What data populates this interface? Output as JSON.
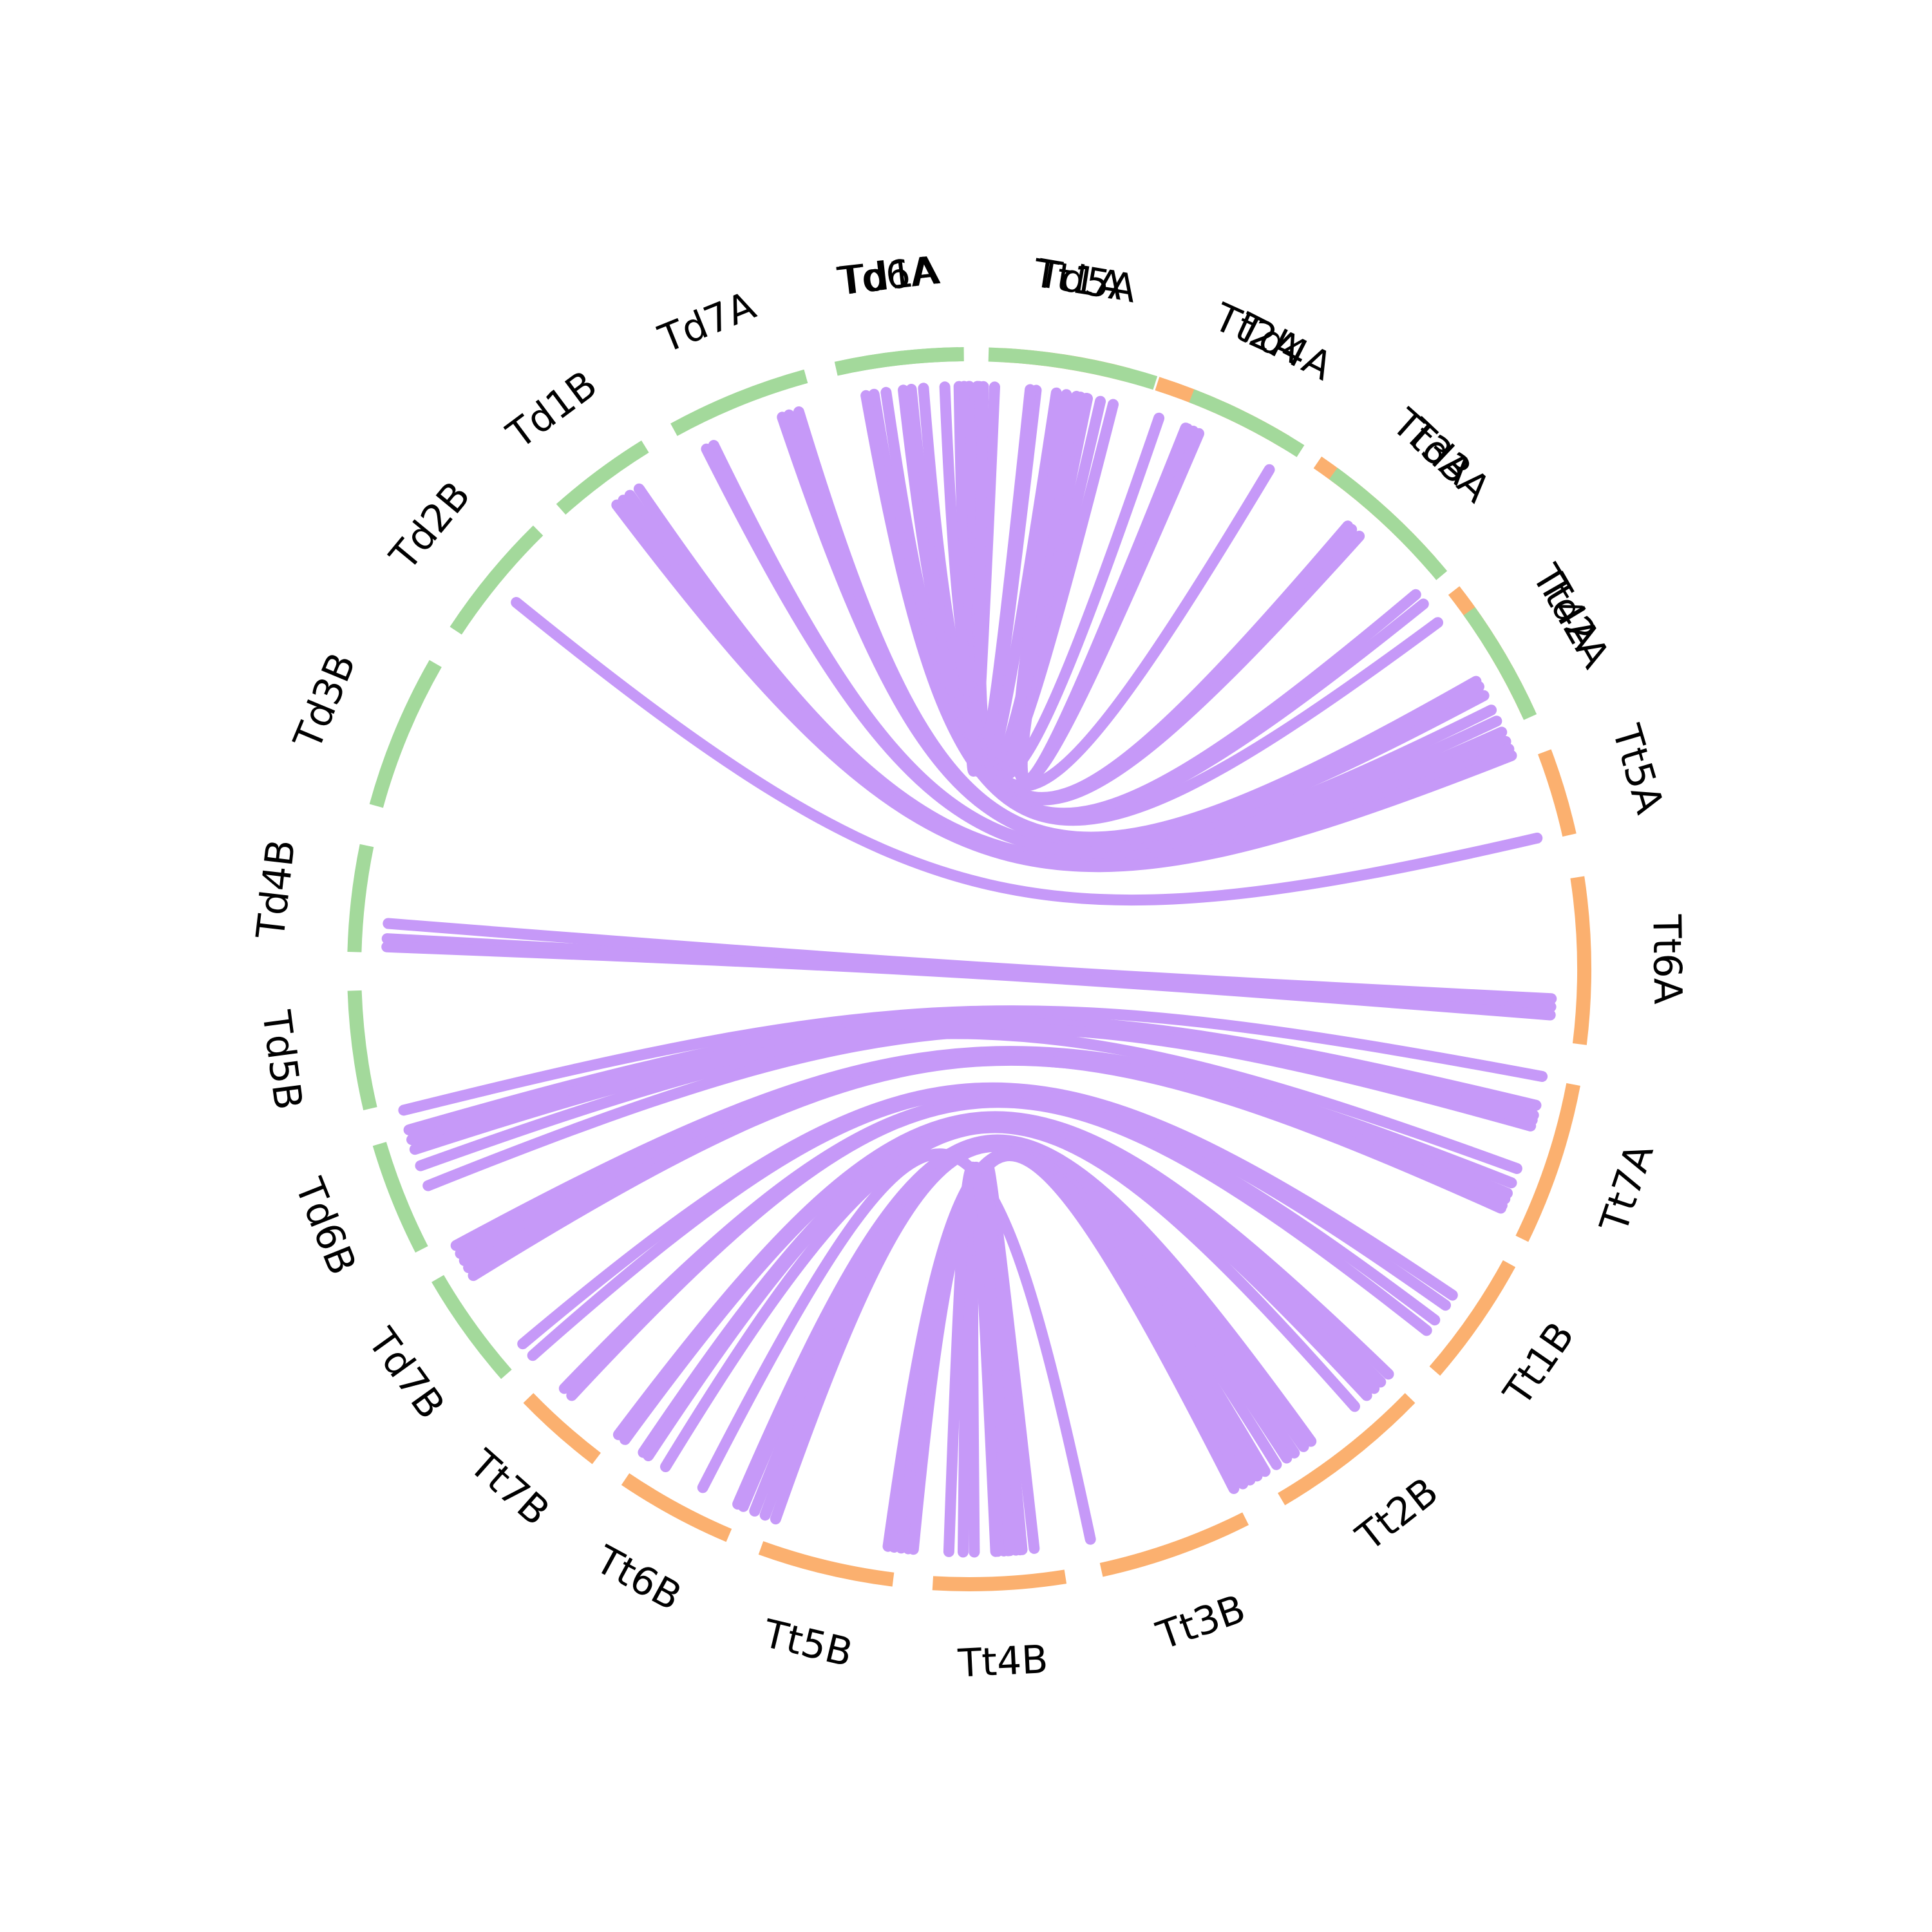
{
  "colors": {
    "td": "#a3d99b",
    "tt": "#fbb06f",
    "link": "#c699f8",
    "text": "#000000",
    "background": "#ffffff"
  },
  "segments": [
    {
      "id": "Td1A",
      "label": "Td1A",
      "group": "td",
      "start": 269.5,
      "end": 281.5
    },
    {
      "id": "Tt1A",
      "label": "Tt1A",
      "group": "tt",
      "start": 273.0,
      "end": 285.0
    },
    {
      "id": "Tt2A",
      "label": "Tt2A",
      "group": "tt",
      "start": 287.8,
      "end": 301.0
    },
    {
      "id": "Tt3A",
      "label": "Tt3A",
      "group": "tt",
      "start": 304.5,
      "end": 318.6
    },
    {
      "id": "Tt4A",
      "label": "Tt4A",
      "group": "tt",
      "start": 322.0,
      "end": 335.5
    },
    {
      "id": "Tt5A",
      "label": "Tt5A",
      "group": "tt",
      "start": 339.3,
      "end": 347.4
    },
    {
      "id": "Tt6A",
      "label": "Tt6A",
      "group": "tt",
      "start": 351.4,
      "end": 367.0
    },
    {
      "id": "Tt7A",
      "label": "Tt7A",
      "group": "tt",
      "start": 370.8,
      "end": 386.0
    },
    {
      "id": "Tt1B",
      "label": "Tt1B",
      "group": "tt",
      "start": 388.6,
      "end": 400.8
    },
    {
      "id": "Tt2B",
      "label": "Tt2B",
      "group": "tt",
      "start": 404.2,
      "end": 419.5
    },
    {
      "id": "Tt3B",
      "label": "Tt3B",
      "group": "tt",
      "start": 423.3,
      "end": 437.6
    },
    {
      "id": "Tt4B",
      "label": "Tt4B",
      "group": "tt",
      "start": 441.0,
      "end": 453.4
    },
    {
      "id": "Tt5B",
      "label": "Tt5B",
      "group": "tt",
      "start": 457.1,
      "end": 469.8
    },
    {
      "id": "Tt6B",
      "label": "Tt6B",
      "group": "tt",
      "start": 473.0,
      "end": 484.0
    },
    {
      "id": "Tt7B",
      "label": "Tt7B",
      "group": "tt",
      "start": 487.3,
      "end": 495.8
    },
    {
      "id": "Td7B",
      "label": "Td7B",
      "group": "td",
      "start": 498.8,
      "end": 509.8
    },
    {
      "id": "Td6B",
      "label": "Td6B",
      "group": "td",
      "start": 512.9,
      "end": 523.5
    },
    {
      "id": "Td5B",
      "label": "Td5B",
      "group": "td",
      "start": 526.9,
      "end": 538.0
    },
    {
      "id": "Td4B",
      "label": "Td4B",
      "group": "td",
      "start": 541.6,
      "end": 551.6
    },
    {
      "id": "Td3B",
      "label": "Td3B",
      "group": "td",
      "start": 555.4,
      "end": 569.8
    },
    {
      "id": "Td2B",
      "label": "Td2B",
      "group": "td",
      "start": 573.4,
      "end": 585.5
    },
    {
      "id": "Td1B",
      "label": "Td1B",
      "group": "td",
      "start": 588.4,
      "end": 598.2
    },
    {
      "id": "Td7A",
      "label": "Td7A",
      "group": "td",
      "start": 601.3,
      "end": 614.6
    },
    {
      "id": "Td6A",
      "label": "Td6A",
      "group": "td",
      "start": 617.5,
      "end": 629.0
    },
    {
      "id": "Td5A",
      "label": "Td5A",
      "group": "td",
      "start": 631.8,
      "end": 647.6
    },
    {
      "id": "Td4A",
      "label": "Td4A",
      "group": "td",
      "start": 651.2,
      "end": 662.6
    },
    {
      "id": "Td3A",
      "label": "Td3A",
      "group": "td",
      "start": 666.3,
      "end": 680.2
    },
    {
      "id": "Td2A",
      "label": "Td2A",
      "group": "td",
      "start": 684.4,
      "end": 695.8
    }
  ],
  "links": [
    {
      "from": 270.0,
      "to": 272.5
    },
    {
      "from": 270.8,
      "to": 276.6
    },
    {
      "from": 271.0,
      "to": 278.6
    },
    {
      "from": 270.8,
      "to": 281.6
    },
    {
      "from": 270.0,
      "to": 283.0
    },
    {
      "from": 271.4,
      "to": 284.3
    },
    {
      "from": 269.5,
      "to": 276.0
    },
    {
      "from": 289.0,
      "to": 269.0
    },
    {
      "from": 291.8,
      "to": 281.7
    },
    {
      "from": 292.6,
      "to": 281.0
    },
    {
      "from": 292.0,
      "to": 280.6
    },
    {
      "from": 293.2,
      "to": 279.6
    },
    {
      "from": 301.0,
      "to": 267.6
    },
    {
      "from": 310.5,
      "to": 265.5
    },
    {
      "from": 311.0,
      "to": 264.3
    },
    {
      "from": 312.0,
      "to": 263.5
    },
    {
      "from": 320.0,
      "to": 261.8
    },
    {
      "from": 321.2,
      "to": 260.6
    },
    {
      "from": 323.5,
      "to": 259.8
    },
    {
      "from": 330.4,
      "to": 253.0
    },
    {
      "from": 331.0,
      "to": 252.0
    },
    {
      "from": 332.0,
      "to": 251.3
    },
    {
      "from": 333.6,
      "to": 244.0
    },
    {
      "from": 334.8,
      "to": 243.2
    },
    {
      "from": 336.0,
      "to": 235.5
    },
    {
      "from": 337.0,
      "to": 234.4
    },
    {
      "from": 337.8,
      "to": 233.6
    },
    {
      "from": 338.5,
      "to": 232.8
    },
    {
      "from": 347.0,
      "to": 219.0
    },
    {
      "from": 3.7,
      "to": 183.0
    },
    {
      "from": 2.9,
      "to": 184.5
    },
    {
      "from": 4.5,
      "to": 182.2
    },
    {
      "from": 10.6,
      "to": 166.0
    },
    {
      "from": 13.5,
      "to": 164.0
    },
    {
      "from": 14.5,
      "to": 163.0
    },
    {
      "from": 15.6,
      "to": 160.3
    },
    {
      "from": 15.0,
      "to": 158.2
    },
    {
      "from": 20.0,
      "to": 162.0
    },
    {
      "from": 21.5,
      "to": 151.7
    },
    {
      "from": 22.6,
      "to": 150.8
    },
    {
      "from": 23.2,
      "to": 150.0
    },
    {
      "from": 24.2,
      "to": 149.2
    },
    {
      "from": 23.9,
      "to": 148.3
    },
    {
      "from": 34.0,
      "to": 140.0
    },
    {
      "from": 35.2,
      "to": 138.5
    },
    {
      "from": 37.0,
      "to": 134.0
    },
    {
      "from": 38.3,
      "to": 133.0
    },
    {
      "from": 44.0,
      "to": 127.0
    },
    {
      "from": 45.1,
      "to": 126.2
    },
    {
      "from": 46.0,
      "to": 124.0
    },
    {
      "from": 47.0,
      "to": 123.4
    },
    {
      "from": 48.6,
      "to": 121.4
    },
    {
      "from": 54.1,
      "to": 113.4
    },
    {
      "from": 55.0,
      "to": 112.8
    },
    {
      "from": 56.1,
      "to": 111.6
    },
    {
      "from": 57.0,
      "to": 110.5
    },
    {
      "from": 58.2,
      "to": 109.4
    },
    {
      "from": 59.5,
      "to": 98.0
    },
    {
      "from": 60.4,
      "to": 97.4
    },
    {
      "from": 61.2,
      "to": 96.7
    },
    {
      "from": 62.0,
      "to": 96.0
    },
    {
      "from": 63.0,
      "to": 95.5
    },
    {
      "from": 78.0,
      "to": 117.2
    },
    {
      "from": 83.6,
      "to": 85.4
    },
    {
      "from": 84.8,
      "to": 86.2
    },
    {
      "from": 85.0,
      "to": 87.2
    },
    {
      "from": 86.6,
      "to": 89.5
    },
    {
      "from": 87.4,
      "to": 90.6
    },
    {
      "from": 86.0,
      "to": 92.0
    }
  ]
}
